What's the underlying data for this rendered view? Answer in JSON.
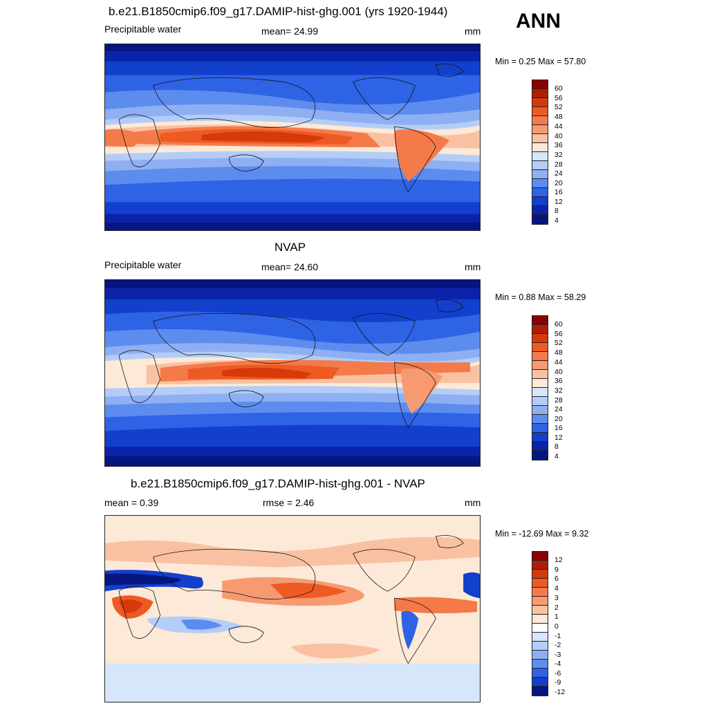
{
  "season": "ANN",
  "panels": [
    {
      "title": "b.e21.B1850cmip6.f09_g17.DAMIP-hist-ghg.001 (yrs 1920-1944)",
      "left_label": "Precipitable water",
      "center_label": "mean=  24.99",
      "units": "mm",
      "minmax": "Min =   0.25 Max =  57.80",
      "colorbar": {
        "labels": [
          "60",
          "56",
          "52",
          "48",
          "44",
          "40",
          "36",
          "32",
          "28",
          "24",
          "20",
          "16",
          "12",
          "8",
          "4"
        ],
        "colors": [
          "#8b0000",
          "#b01e08",
          "#d63a0a",
          "#ee5a24",
          "#f47a4a",
          "#f79a72",
          "#f9c1a2",
          "#fde9d7",
          "#d6e6fb",
          "#b4cdf7",
          "#8eb0f3",
          "#5d8cef",
          "#2e63e6",
          "#1240cc",
          "#0b23a8",
          "#061680"
        ]
      },
      "map_colors": [
        "#061680",
        "#0b23a8",
        "#1240cc",
        "#2e63e6",
        "#5d8cef",
        "#8eb0f3",
        "#b4cdf7",
        "#d6e6fb",
        "#fde9d7",
        "#f9c1a2",
        "#f79a72",
        "#f47a4a",
        "#ee5a24",
        "#d63a0a"
      ]
    },
    {
      "title": "NVAP",
      "left_label": "Precipitable water",
      "center_label": "mean=  24.60",
      "units": "mm",
      "minmax": "Min =   0.88 Max =  58.29",
      "colorbar": {
        "labels": [
          "60",
          "56",
          "52",
          "48",
          "44",
          "40",
          "36",
          "32",
          "28",
          "24",
          "20",
          "16",
          "12",
          "8",
          "4"
        ],
        "colors": [
          "#8b0000",
          "#b01e08",
          "#d63a0a",
          "#ee5a24",
          "#f47a4a",
          "#f79a72",
          "#f9c1a2",
          "#fde9d7",
          "#d6e6fb",
          "#b4cdf7",
          "#8eb0f3",
          "#5d8cef",
          "#2e63e6",
          "#1240cc",
          "#0b23a8",
          "#061680"
        ]
      }
    },
    {
      "title": "b.e21.B1850cmip6.f09_g17.DAMIP-hist-ghg.001 - NVAP",
      "left_label": "mean =   0.39",
      "center_label": "rmse =   2.46",
      "units": "mm",
      "minmax": "Min = -12.69 Max =   9.32",
      "colorbar": {
        "labels": [
          "12",
          "9",
          "6",
          "4",
          "3",
          "2",
          "1",
          "0",
          "-1",
          "-2",
          "-3",
          "-4",
          "-6",
          "-9",
          "-12"
        ],
        "colors": [
          "#8b0000",
          "#b01e08",
          "#d63a0a",
          "#ee5a24",
          "#f47a4a",
          "#f79a72",
          "#f9c1a2",
          "#fde9d7",
          "#ffffff",
          "#d6e6fb",
          "#b4cdf7",
          "#8eb0f3",
          "#5d8cef",
          "#2e63e6",
          "#1240cc",
          "#061680"
        ]
      }
    }
  ]
}
